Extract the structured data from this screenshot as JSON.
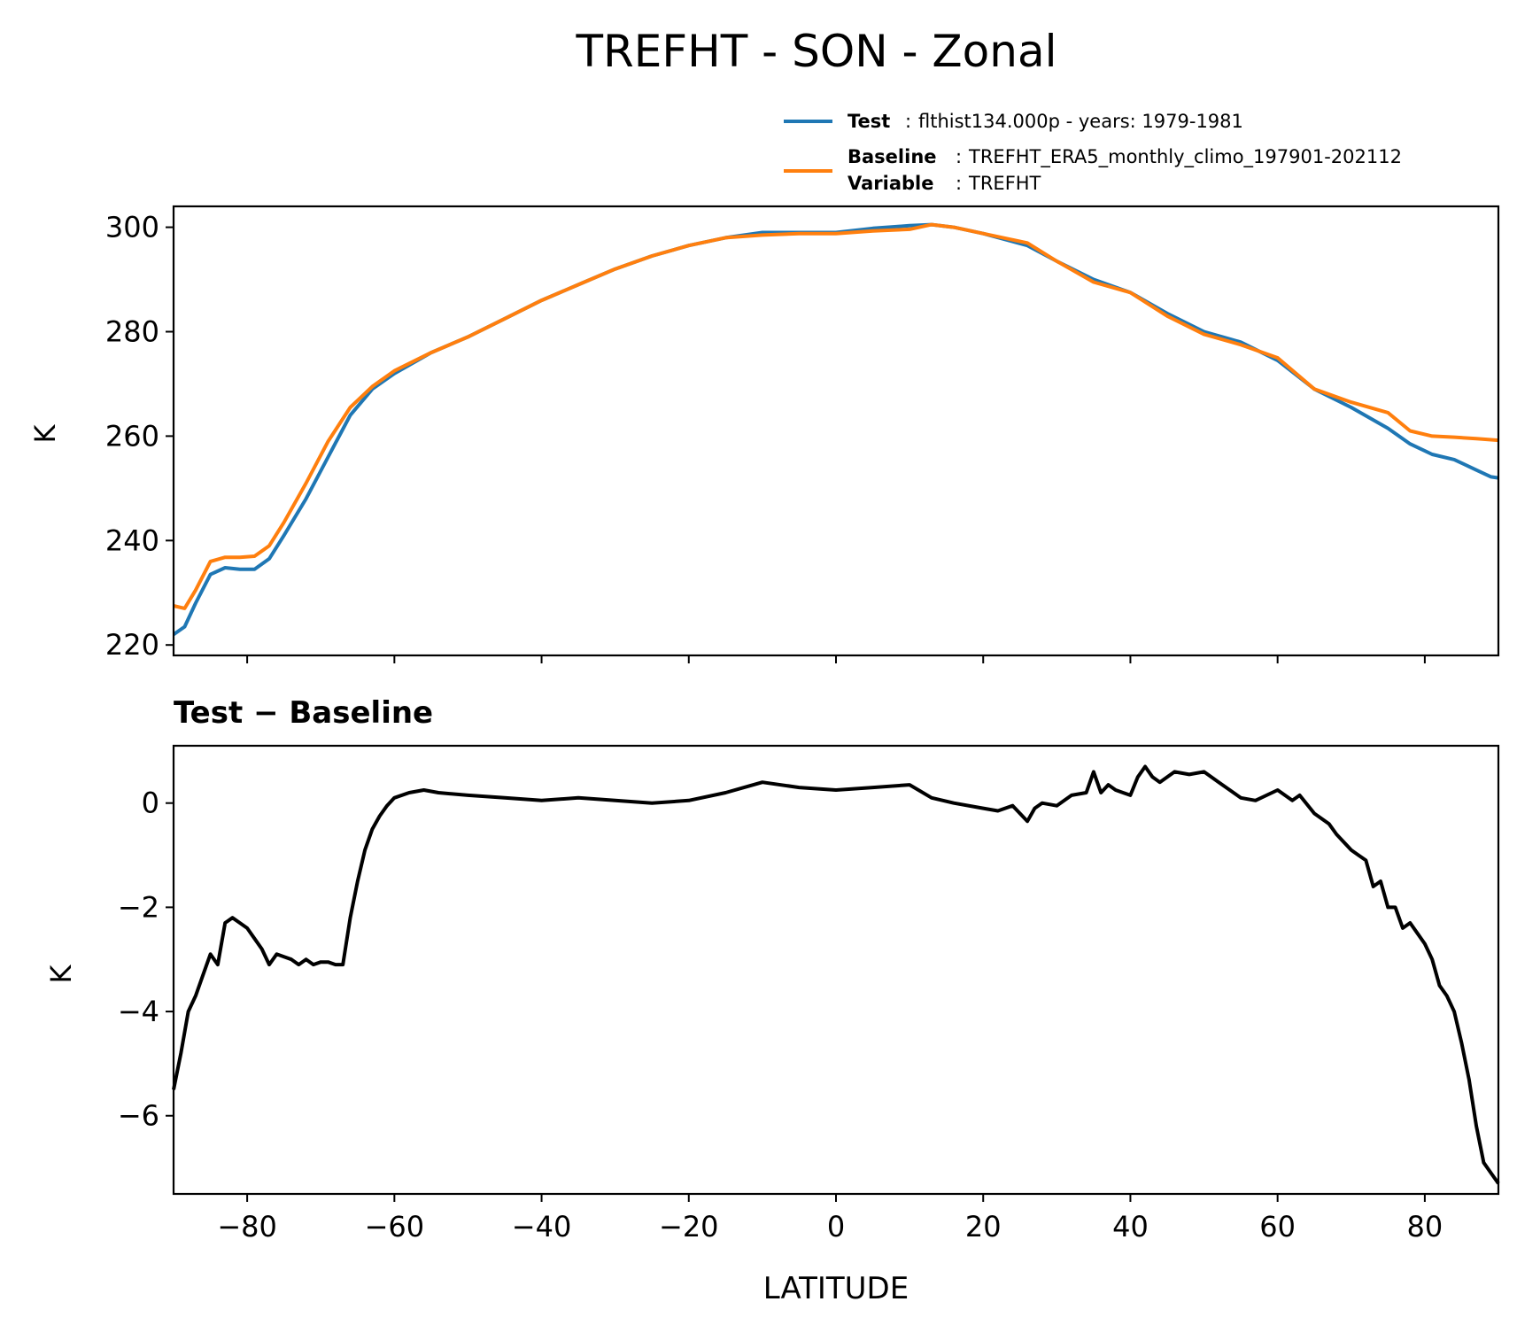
{
  "title": "TREFHT - SON - Zonal",
  "legend": {
    "test_label": "Test",
    "test_text": "flthist134.000p - years: 1979-1981",
    "baseline_label": "Baseline",
    "baseline_text": "TREFHT_ERA5_monthly_climo_197901-202112",
    "variable_label": "Variable",
    "variable_text": "TREFHT",
    "separator": ":"
  },
  "colors": {
    "test": "#1f77b4",
    "baseline": "#ff7f0e",
    "diff": "#000000"
  },
  "chart_data": [
    {
      "type": "line",
      "title": "",
      "xlabel": "",
      "ylabel": "K",
      "xlim": [
        -90,
        90
      ],
      "ylim": [
        218,
        304
      ],
      "yticks": [
        220,
        240,
        260,
        280,
        300
      ],
      "ytick_labels": [
        "220",
        "240",
        "260",
        "280",
        "300"
      ],
      "series": [
        {
          "name": "Test",
          "x": [
            -90,
            -88.5,
            -87,
            -85,
            -83,
            -81,
            -79,
            -77,
            -75,
            -72,
            -69,
            -66,
            -63,
            -60,
            -55,
            -50,
            -45,
            -40,
            -35,
            -30,
            -25,
            -20,
            -15,
            -10,
            -5,
            0,
            5,
            10,
            13,
            16,
            20,
            26,
            30,
            35,
            40,
            45,
            50,
            55,
            60,
            65,
            70,
            75,
            78,
            81,
            84,
            87,
            89,
            90
          ],
          "values": [
            222,
            223.5,
            228,
            233.5,
            234.8,
            234.5,
            234.5,
            236.5,
            241,
            248,
            256,
            264,
            269,
            272,
            276,
            279,
            282.5,
            286,
            289,
            292,
            294.5,
            296.5,
            298,
            299,
            299,
            299,
            299.8,
            300.3,
            300.5,
            300,
            298.8,
            296.5,
            293.5,
            290,
            287.5,
            283.5,
            280,
            278,
            274.5,
            269,
            265.5,
            261.5,
            258.5,
            256.5,
            255.5,
            253.5,
            252.2,
            252
          ]
        },
        {
          "name": "Baseline",
          "x": [
            -90,
            -88.5,
            -87,
            -85,
            -83,
            -81,
            -79,
            -77,
            -75,
            -72,
            -69,
            -66,
            -63,
            -60,
            -55,
            -50,
            -45,
            -40,
            -35,
            -30,
            -25,
            -20,
            -15,
            -10,
            -5,
            0,
            5,
            10,
            13,
            16,
            20,
            26,
            30,
            35,
            40,
            45,
            50,
            55,
            60,
            65,
            70,
            75,
            78,
            81,
            84,
            87,
            89,
            90
          ],
          "values": [
            227.5,
            227,
            230.5,
            236,
            236.8,
            236.8,
            237,
            239,
            243.5,
            251,
            259,
            265.5,
            269.5,
            272.5,
            276,
            279,
            282.5,
            286,
            289,
            292,
            294.5,
            296.5,
            298,
            298.5,
            298.8,
            298.8,
            299.3,
            299.6,
            300.5,
            300,
            298.8,
            297,
            293.5,
            289.5,
            287.5,
            283,
            279.5,
            277.5,
            275,
            269,
            266.5,
            264.5,
            261,
            260,
            259.8,
            259.5,
            259.3,
            259.2
          ]
        }
      ]
    },
    {
      "type": "line",
      "title": "Test − Baseline",
      "xlabel": "LATITUDE",
      "ylabel": "K",
      "xlim": [
        -90,
        90
      ],
      "ylim": [
        -7.5,
        1.1
      ],
      "xticks": [
        -80,
        -60,
        -40,
        -20,
        0,
        20,
        40,
        60,
        80
      ],
      "xtick_labels": [
        "−80",
        "−60",
        "−40",
        "−20",
        "0",
        "20",
        "40",
        "60",
        "80"
      ],
      "yticks": [
        -6,
        -4,
        -2,
        0
      ],
      "ytick_labels": [
        "−6",
        "−4",
        "−2",
        "0"
      ],
      "series": [
        {
          "name": "Test − Baseline",
          "x": [
            -90,
            -89,
            -88,
            -87,
            -86,
            -85,
            -84,
            -83,
            -82,
            -81,
            -80,
            -79,
            -78,
            -77,
            -76,
            -75,
            -74,
            -73,
            -72,
            -71,
            -70,
            -69,
            -68,
            -67,
            -66,
            -65,
            -64,
            -63,
            -62,
            -61,
            -60,
            -58,
            -56,
            -54,
            -50,
            -45,
            -40,
            -35,
            -30,
            -25,
            -20,
            -15,
            -10,
            -5,
            0,
            5,
            10,
            13,
            16,
            20,
            22,
            24,
            26,
            27,
            28,
            30,
            32,
            34,
            35,
            36,
            37,
            38,
            40,
            41,
            42,
            43,
            44,
            46,
            48,
            50,
            52,
            55,
            57,
            60,
            62,
            63,
            65,
            67,
            68,
            70,
            71,
            72,
            73,
            74,
            75,
            76,
            77,
            78,
            79,
            80,
            81,
            82,
            83,
            84,
            85,
            86,
            87,
            88,
            89,
            90
          ],
          "values": [
            -5.5,
            -4.8,
            -4,
            -3.7,
            -3.3,
            -2.9,
            -3.1,
            -2.3,
            -2.2,
            -2.3,
            -2.4,
            -2.6,
            -2.8,
            -3.1,
            -2.9,
            -2.95,
            -3.0,
            -3.1,
            -3.0,
            -3.1,
            -3.05,
            -3.05,
            -3.1,
            -3.1,
            -2.2,
            -1.5,
            -0.9,
            -0.5,
            -0.25,
            -0.05,
            0.1,
            0.2,
            0.25,
            0.2,
            0.15,
            0.1,
            0.05,
            0.1,
            0.05,
            0.0,
            0.05,
            0.2,
            0.4,
            0.3,
            0.25,
            0.3,
            0.35,
            0.1,
            0.0,
            -0.1,
            -0.15,
            -0.05,
            -0.35,
            -0.1,
            0.0,
            -0.05,
            0.15,
            0.2,
            0.6,
            0.2,
            0.35,
            0.25,
            0.15,
            0.5,
            0.7,
            0.5,
            0.4,
            0.6,
            0.55,
            0.6,
            0.4,
            0.1,
            0.05,
            0.25,
            0.05,
            0.15,
            -0.2,
            -0.4,
            -0.6,
            -0.9,
            -1.0,
            -1.1,
            -1.6,
            -1.5,
            -2.0,
            -2.0,
            -2.4,
            -2.3,
            -2.5,
            -2.7,
            -3.0,
            -3.5,
            -3.7,
            -4.0,
            -4.6,
            -5.3,
            -6.2,
            -6.9,
            -7.1,
            -7.3
          ]
        }
      ]
    }
  ]
}
